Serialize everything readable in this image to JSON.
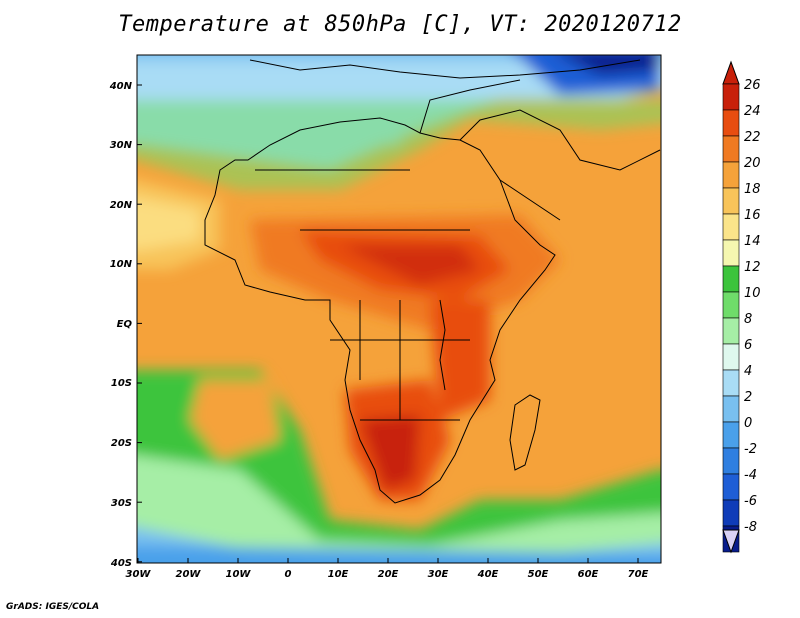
{
  "title": "Temperature at 850hPa [C], VT: 2020120712",
  "credit": "GrADS: IGES/COLA",
  "map": {
    "lat_labels": [
      "40N",
      "30N",
      "20N",
      "10N",
      "EQ",
      "10S",
      "20S",
      "30S",
      "40S"
    ],
    "lon_labels": [
      "30W",
      "20W",
      "10W",
      "0",
      "10E",
      "20E",
      "30E",
      "40E",
      "50E",
      "60E",
      "70E"
    ]
  },
  "colorbar": {
    "labels": [
      "26",
      "24",
      "22",
      "20",
      "18",
      "16",
      "14",
      "12",
      "10",
      "8",
      "6",
      "4",
      "2",
      "0",
      "-2",
      "-4",
      "-6",
      "-8"
    ],
    "colors": [
      "#c8200a",
      "#e84d10",
      "#f07a22",
      "#f5a23a",
      "#f8c45a",
      "#fbe48a",
      "#f5f7b0",
      "#3cc43c",
      "#6fdc6a",
      "#a6eea6",
      "#dff8ee",
      "#a9dcf5",
      "#79c0f0",
      "#4aa0ea",
      "#2f7fe0",
      "#1e5ed6",
      "#0f3cb8",
      "#081c8c"
    ],
    "top_arrow_color": "#c8200a",
    "bottom_arrow_color": "#d9d2f5"
  }
}
